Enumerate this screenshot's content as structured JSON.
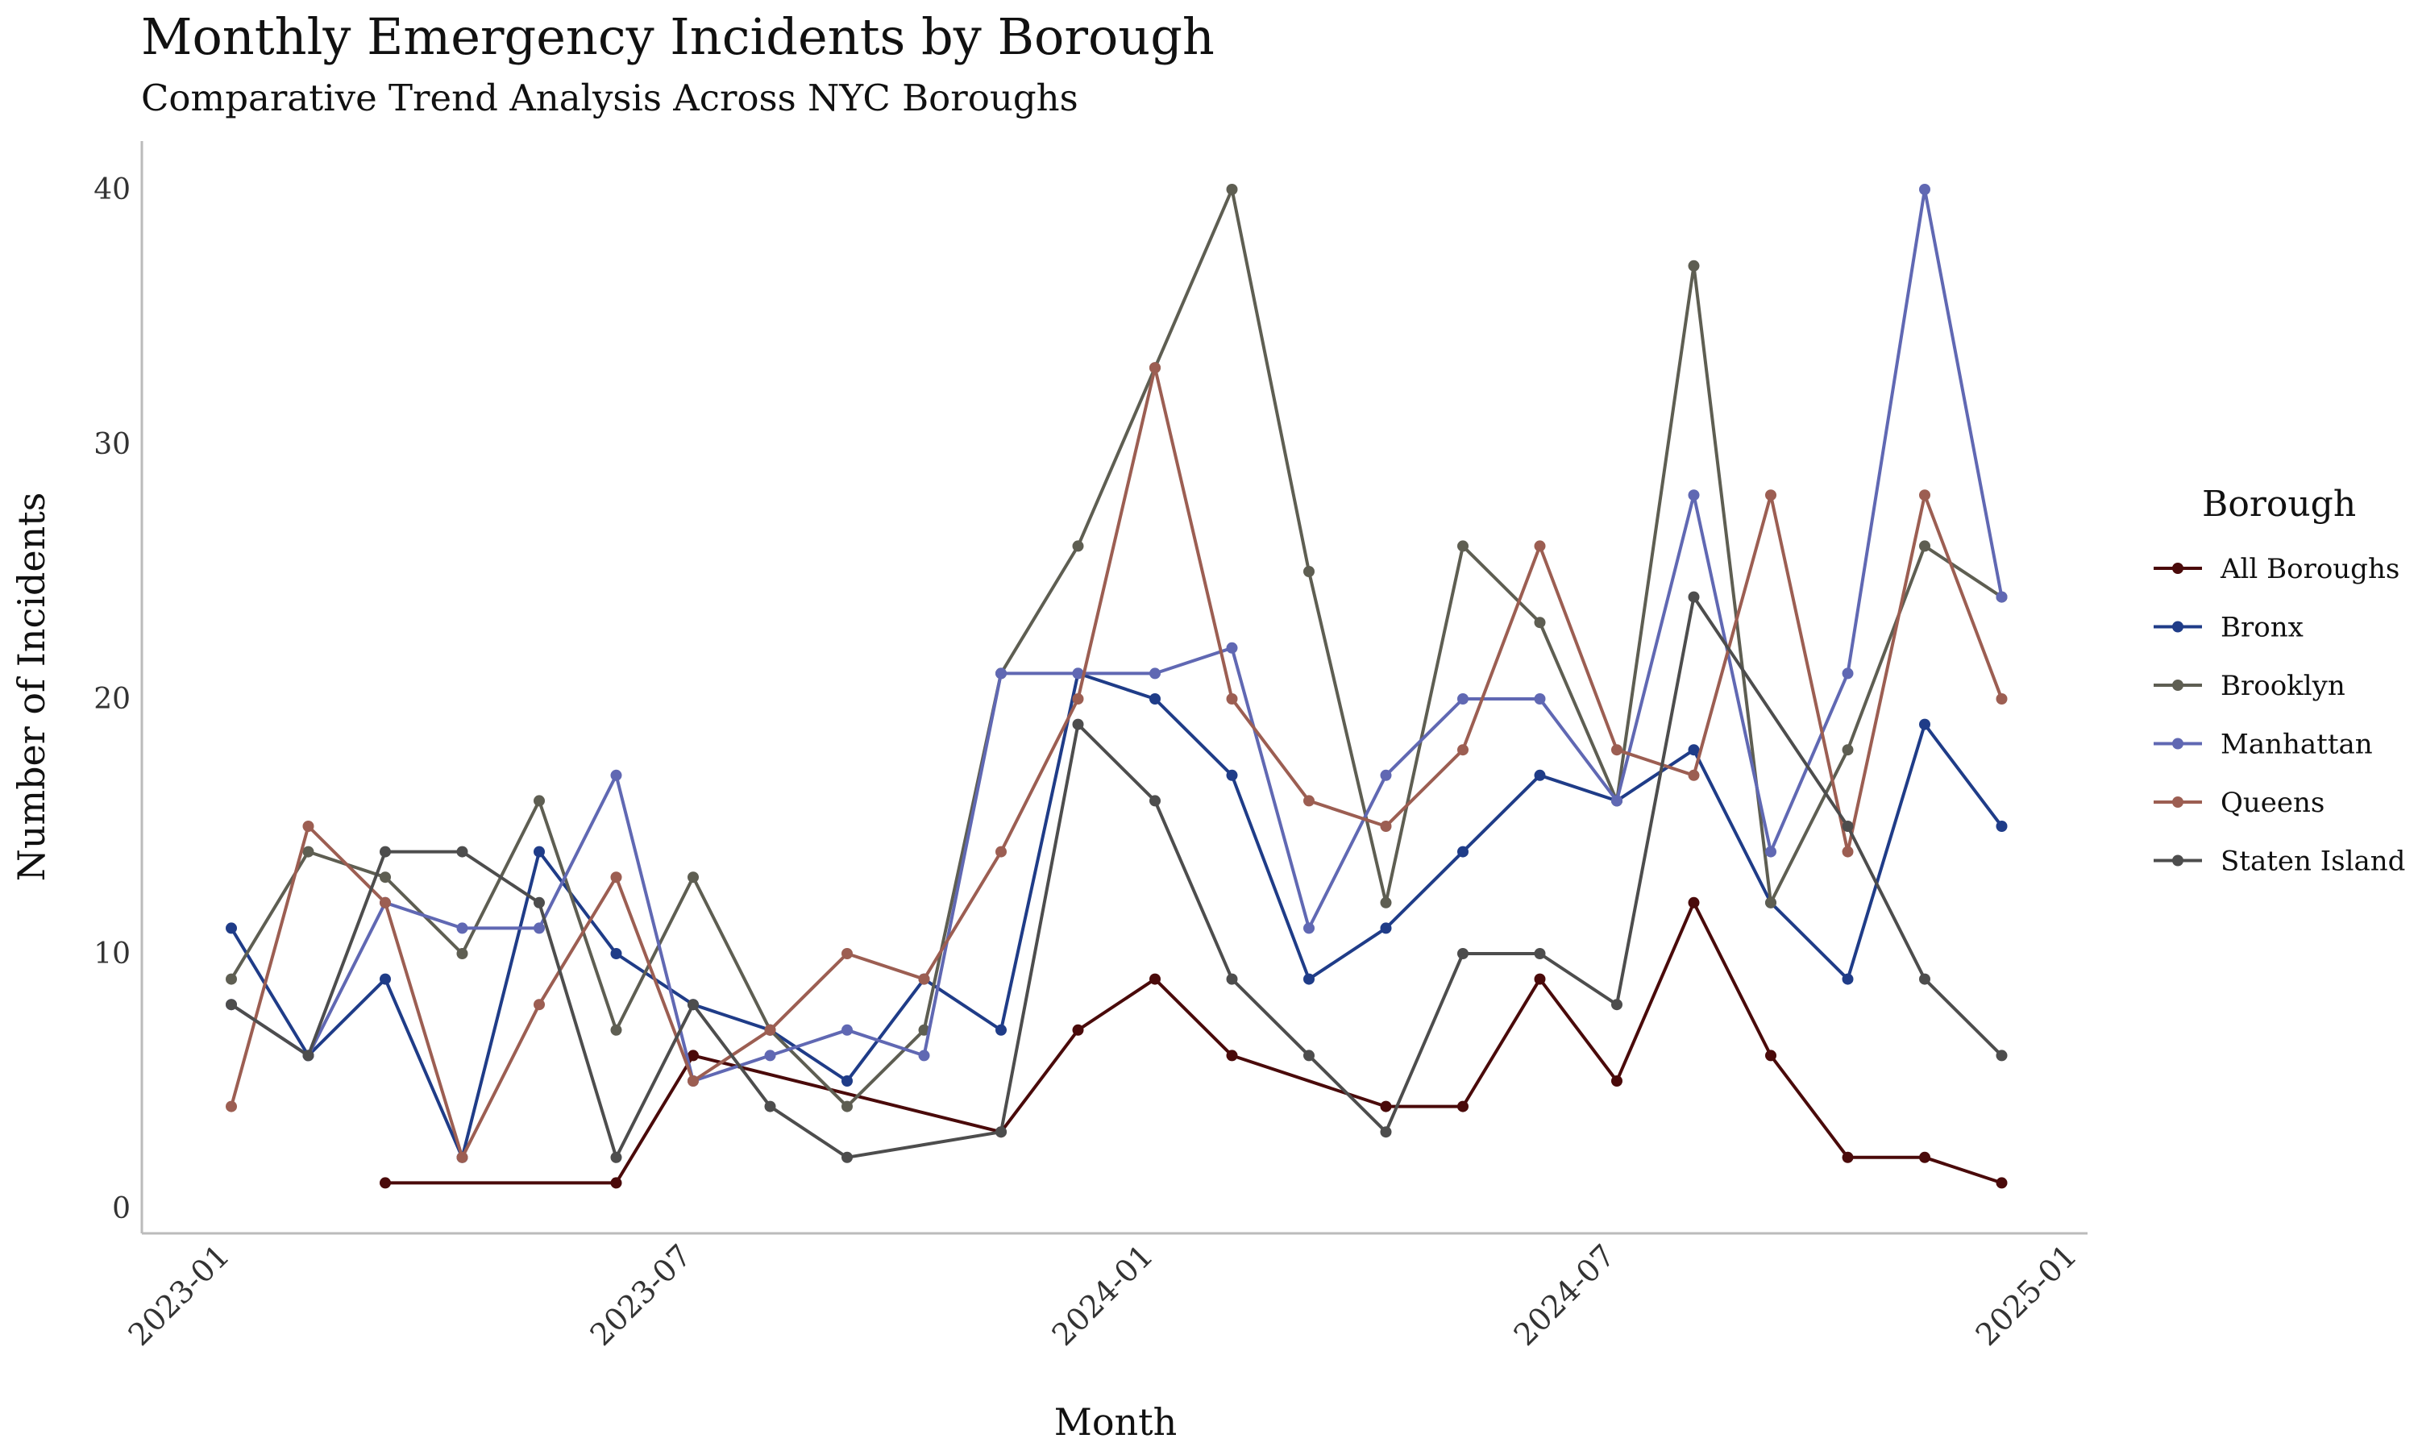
{
  "chart_data": {
    "type": "line",
    "title": "Monthly Emergency Incidents by Borough",
    "subtitle": "Comparative Trend Analysis Across NYC Boroughs",
    "xlabel": "Month",
    "ylabel": "Number of Incidents",
    "ylim": [
      0,
      40
    ],
    "y_ticks": [
      0,
      10,
      20,
      30,
      40
    ],
    "xlim": [
      "2022-12",
      "2025-01"
    ],
    "x_ticks": [
      "2023-01",
      "2023-07",
      "2024-01",
      "2024-07",
      "2025-01"
    ],
    "grid": false,
    "legend": {
      "title": "Borough",
      "position": "right"
    },
    "series": [
      {
        "name": "All Boroughs",
        "color": "#4a0a0a",
        "points": [
          [
            "2023-03",
            1
          ],
          [
            "2023-06",
            1
          ],
          [
            "2023-07",
            6
          ],
          [
            "2023-11",
            3
          ],
          [
            "2023-12",
            7
          ],
          [
            "2024-01",
            9
          ],
          [
            "2024-02",
            6
          ],
          [
            "2024-04",
            4
          ],
          [
            "2024-05",
            4
          ],
          [
            "2024-06",
            9
          ],
          [
            "2024-07",
            5
          ],
          [
            "2024-08",
            12
          ],
          [
            "2024-09",
            6
          ],
          [
            "2024-10",
            2
          ],
          [
            "2024-11",
            2
          ],
          [
            "2024-12",
            1
          ]
        ]
      },
      {
        "name": "Bronx",
        "color": "#1f3c88",
        "points": [
          [
            "2023-01",
            11
          ],
          [
            "2023-02",
            6
          ],
          [
            "2023-03",
            9
          ],
          [
            "2023-04",
            2
          ],
          [
            "2023-05",
            14
          ],
          [
            "2023-06",
            10
          ],
          [
            "2023-07",
            8
          ],
          [
            "2023-08",
            7
          ],
          [
            "2023-09",
            5
          ],
          [
            "2023-10",
            9
          ],
          [
            "2023-11",
            7
          ],
          [
            "2023-12",
            21
          ],
          [
            "2024-01",
            20
          ],
          [
            "2024-02",
            17
          ],
          [
            "2024-03",
            9
          ],
          [
            "2024-04",
            11
          ],
          [
            "2024-05",
            14
          ],
          [
            "2024-06",
            17
          ],
          [
            "2024-07",
            16
          ],
          [
            "2024-08",
            18
          ],
          [
            "2024-09",
            12
          ],
          [
            "2024-10",
            9
          ],
          [
            "2024-11",
            19
          ],
          [
            "2024-12",
            15
          ]
        ]
      },
      {
        "name": "Brooklyn",
        "color": "#5e5e52",
        "points": [
          [
            "2023-01",
            9
          ],
          [
            "2023-02",
            14
          ],
          [
            "2023-03",
            13
          ],
          [
            "2023-04",
            10
          ],
          [
            "2023-05",
            16
          ],
          [
            "2023-06",
            7
          ],
          [
            "2023-07",
            13
          ],
          [
            "2023-08",
            7
          ],
          [
            "2023-09",
            4
          ],
          [
            "2023-10",
            7
          ],
          [
            "2023-11",
            21
          ],
          [
            "2023-12",
            26
          ],
          [
            "2024-01",
            33
          ],
          [
            "2024-02",
            40
          ],
          [
            "2024-03",
            25
          ],
          [
            "2024-04",
            12
          ],
          [
            "2024-05",
            26
          ],
          [
            "2024-06",
            23
          ],
          [
            "2024-07",
            16
          ],
          [
            "2024-08",
            37
          ],
          [
            "2024-09",
            12
          ],
          [
            "2024-10",
            18
          ],
          [
            "2024-11",
            26
          ],
          [
            "2024-12",
            24
          ]
        ]
      },
      {
        "name": "Manhattan",
        "color": "#6068b3",
        "points": [
          [
            "2023-01",
            8
          ],
          [
            "2023-02",
            6
          ],
          [
            "2023-03",
            12
          ],
          [
            "2023-04",
            11
          ],
          [
            "2023-05",
            11
          ],
          [
            "2023-06",
            17
          ],
          [
            "2023-07",
            5
          ],
          [
            "2023-08",
            6
          ],
          [
            "2023-09",
            7
          ],
          [
            "2023-10",
            6
          ],
          [
            "2023-11",
            21
          ],
          [
            "2023-12",
            21
          ],
          [
            "2024-01",
            21
          ],
          [
            "2024-02",
            22
          ],
          [
            "2024-03",
            11
          ],
          [
            "2024-04",
            17
          ],
          [
            "2024-05",
            20
          ],
          [
            "2024-06",
            20
          ],
          [
            "2024-07",
            16
          ],
          [
            "2024-08",
            28
          ],
          [
            "2024-09",
            14
          ],
          [
            "2024-10",
            21
          ],
          [
            "2024-11",
            40
          ],
          [
            "2024-12",
            24
          ]
        ]
      },
      {
        "name": "Queens",
        "color": "#9c5e52",
        "points": [
          [
            "2023-01",
            4
          ],
          [
            "2023-02",
            15
          ],
          [
            "2023-03",
            12
          ],
          [
            "2023-04",
            2
          ],
          [
            "2023-05",
            8
          ],
          [
            "2023-06",
            13
          ],
          [
            "2023-07",
            5
          ],
          [
            "2023-08",
            7
          ],
          [
            "2023-09",
            10
          ],
          [
            "2023-10",
            9
          ],
          [
            "2023-11",
            14
          ],
          [
            "2023-12",
            20
          ],
          [
            "2024-01",
            33
          ],
          [
            "2024-02",
            20
          ],
          [
            "2024-03",
            16
          ],
          [
            "2024-04",
            15
          ],
          [
            "2024-05",
            18
          ],
          [
            "2024-06",
            26
          ],
          [
            "2024-07",
            18
          ],
          [
            "2024-08",
            17
          ],
          [
            "2024-09",
            28
          ],
          [
            "2024-10",
            14
          ],
          [
            "2024-11",
            28
          ],
          [
            "2024-12",
            20
          ]
        ]
      },
      {
        "name": "Staten Island",
        "color": "#4d4d4d",
        "points": [
          [
            "2023-01",
            8
          ],
          [
            "2023-02",
            6
          ],
          [
            "2023-03",
            14
          ],
          [
            "2023-04",
            14
          ],
          [
            "2023-05",
            12
          ],
          [
            "2023-06",
            2
          ],
          [
            "2023-07",
            8
          ],
          [
            "2023-08",
            4
          ],
          [
            "2023-09",
            2
          ],
          [
            "2023-11",
            3
          ],
          [
            "2023-12",
            19
          ],
          [
            "2024-01",
            16
          ],
          [
            "2024-02",
            9
          ],
          [
            "2024-03",
            6
          ],
          [
            "2024-04",
            3
          ],
          [
            "2024-05",
            10
          ],
          [
            "2024-06",
            10
          ],
          [
            "2024-07",
            8
          ],
          [
            "2024-08",
            24
          ],
          [
            "2024-10",
            15
          ],
          [
            "2024-11",
            9
          ],
          [
            "2024-12",
            6
          ]
        ]
      }
    ]
  }
}
